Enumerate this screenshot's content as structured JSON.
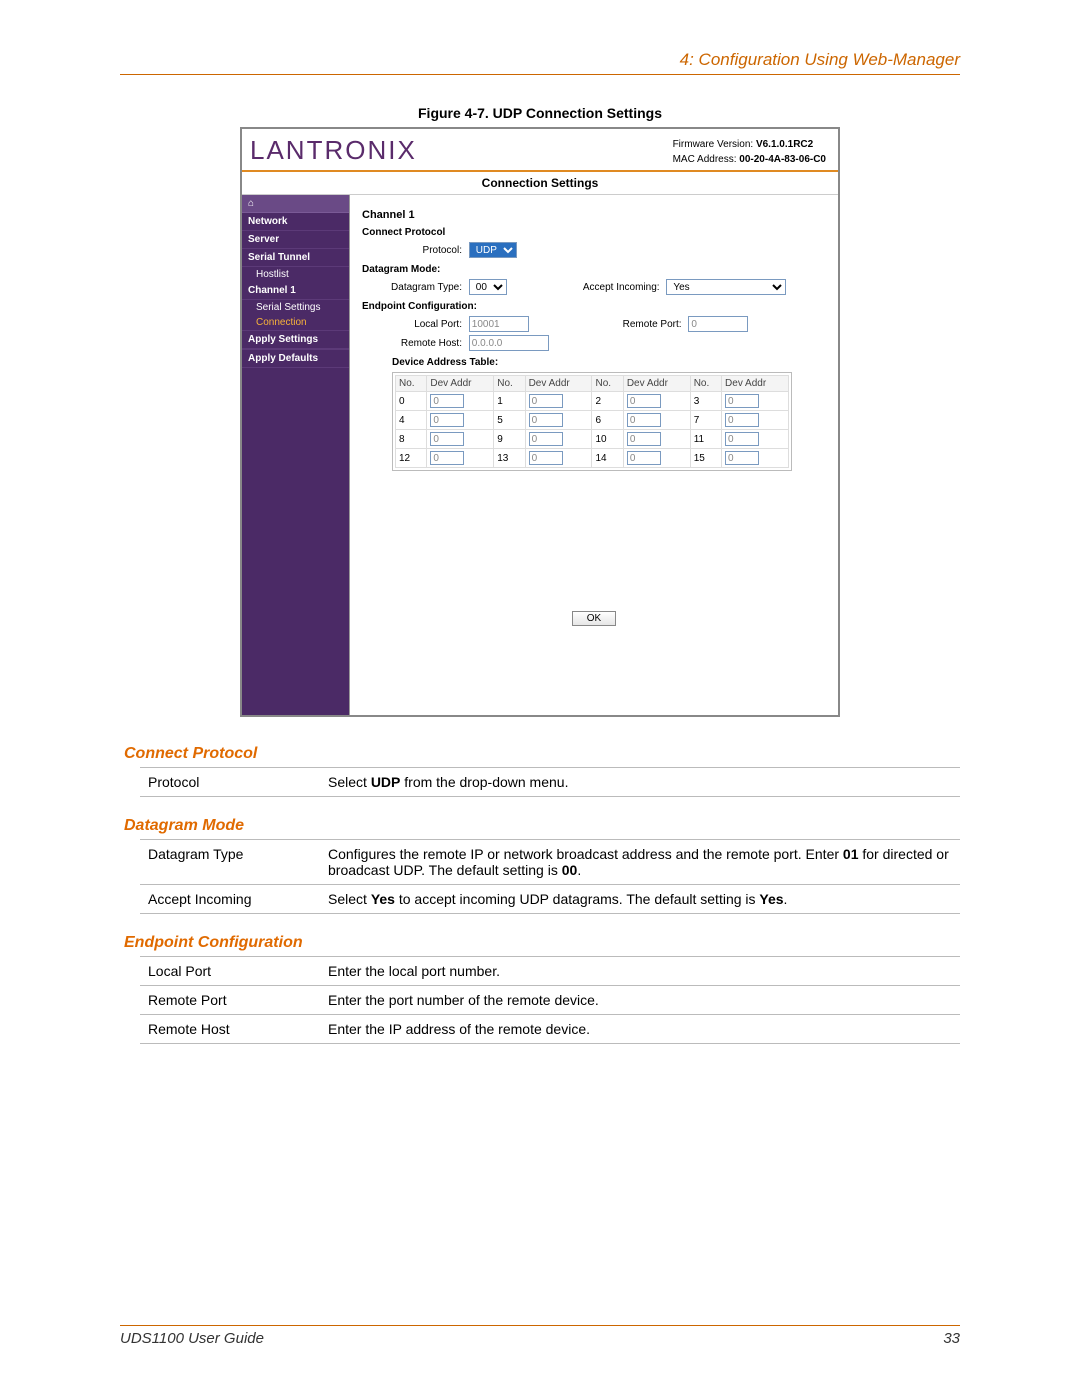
{
  "header": {
    "chapter": "4: Configuration Using Web-Manager"
  },
  "figure": {
    "caption": "Figure 4-7. UDP Connection Settings"
  },
  "shot": {
    "logo": "LANTRONIX",
    "fw_label": "Firmware Version:",
    "fw_value": "V6.1.0.1RC2",
    "mac_label": "MAC Address:",
    "mac_value": "00-20-4A-83-06-C0",
    "title": "Connection Settings",
    "sidebar": {
      "items": [
        "Network",
        "Server",
        "Serial Tunnel",
        "Channel 1"
      ],
      "subs_tunnel": [
        "Hostlist"
      ],
      "subs_channel": [
        "Serial Settings",
        "Connection"
      ],
      "apply": [
        "Apply Settings",
        "Apply Defaults"
      ]
    },
    "main": {
      "channel": "Channel 1",
      "connect_protocol_h": "Connect Protocol",
      "protocol_label": "Protocol:",
      "protocol_value": "UDP",
      "datagram_h": "Datagram Mode:",
      "datagram_type_label": "Datagram Type:",
      "datagram_type_value": "00",
      "accept_label": "Accept Incoming:",
      "accept_value": "Yes",
      "endpoint_h": "Endpoint Configuration:",
      "local_port_label": "Local Port:",
      "local_port_value": "10001",
      "remote_port_label": "Remote Port:",
      "remote_port_value": "0",
      "remote_host_label": "Remote Host:",
      "remote_host_value": "0.0.0.0",
      "dev_table_h": "Device Address Table:",
      "th_no": "No.",
      "th_dev": "Dev Addr",
      "rows": [
        [
          "0",
          "0",
          "1",
          "0",
          "2",
          "0",
          "3",
          "0"
        ],
        [
          "4",
          "0",
          "5",
          "0",
          "6",
          "0",
          "7",
          "0"
        ],
        [
          "8",
          "0",
          "9",
          "0",
          "10",
          "0",
          "11",
          "0"
        ],
        [
          "12",
          "0",
          "13",
          "0",
          "14",
          "0",
          "15",
          "0"
        ]
      ],
      "ok": "OK"
    }
  },
  "sections": {
    "connect": {
      "heading": "Connect Protocol",
      "rows": [
        {
          "k": "Protocol",
          "v_pre": "Select ",
          "v_b": "UDP",
          "v_post": " from the drop-down menu."
        }
      ]
    },
    "datagram": {
      "heading": "Datagram Mode",
      "rows": [
        {
          "k": "Datagram Type",
          "v": "Configures the remote IP or network broadcast address and the remote port. Enter 01 for directed or broadcast UDP. The default setting is 00."
        },
        {
          "k": "Accept Incoming",
          "v": "Select Yes to accept incoming UDP datagrams. The default setting is Yes."
        }
      ]
    },
    "endpoint": {
      "heading": "Endpoint Configuration",
      "rows": [
        {
          "k": "Local Port",
          "v": "Enter the local port number."
        },
        {
          "k": "Remote Port",
          "v": "Enter the port number of the remote device."
        },
        {
          "k": "Remote Host",
          "v": "Enter the IP address of the remote device."
        }
      ]
    }
  },
  "footer": {
    "title": "UDS1100 User Guide",
    "page": "33"
  }
}
